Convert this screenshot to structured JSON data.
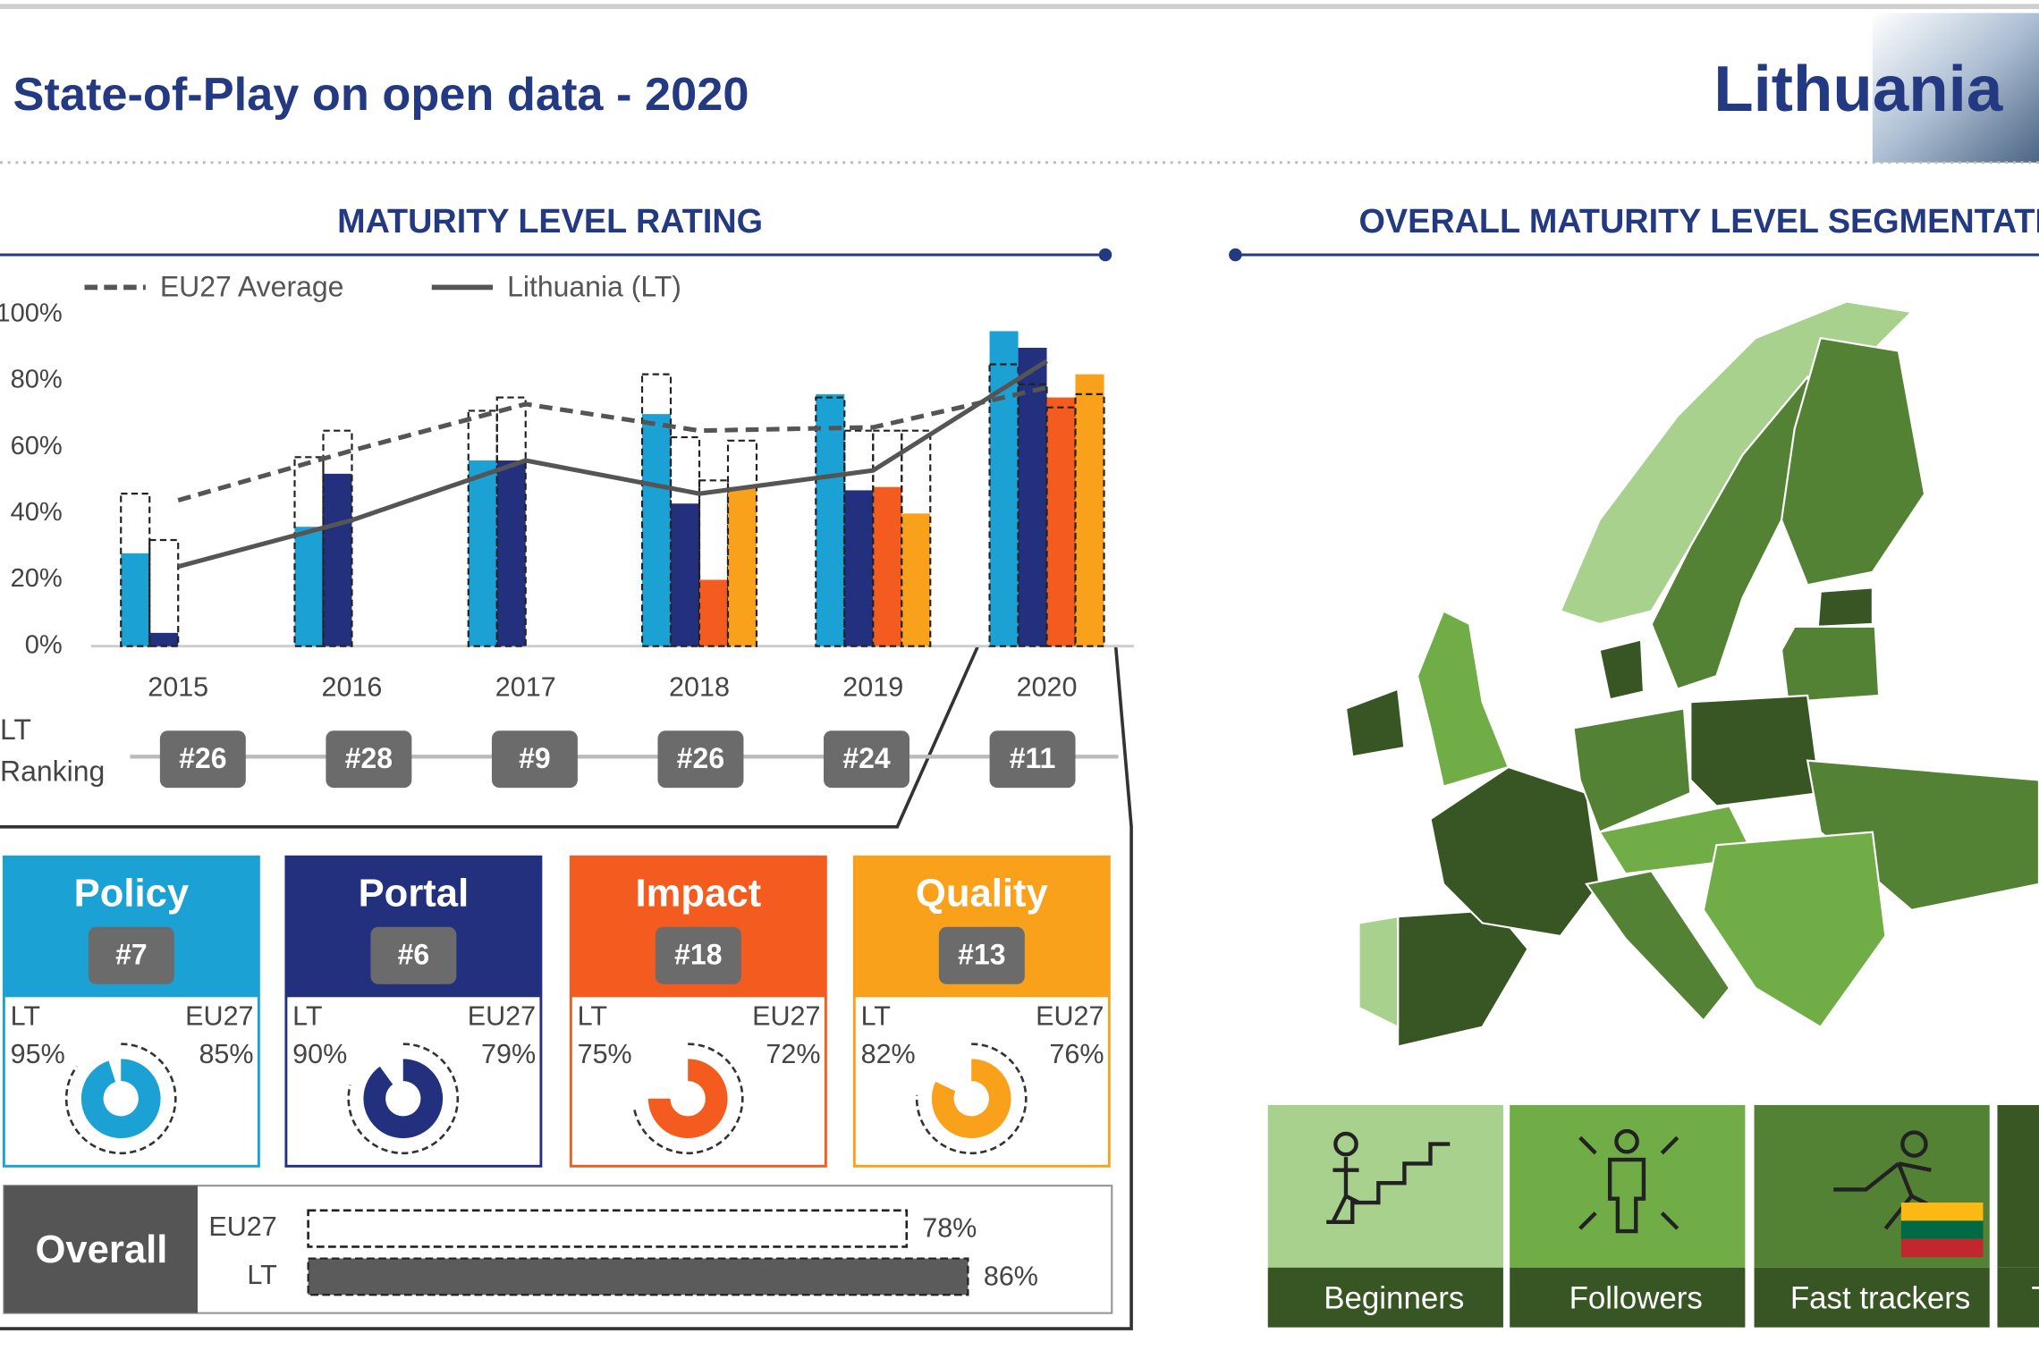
{
  "header": {
    "title": "State-of-Play on open data - 2020",
    "country": "Lithuania"
  },
  "chart_data": [
    {
      "type": "bar",
      "title": "MATURITY LEVEL RATING",
      "categories": [
        "2015",
        "2016",
        "2017",
        "2018",
        "2019",
        "2020"
      ],
      "series": [
        {
          "name": "Policy",
          "color": "#1ba1d4",
          "values": [
            28,
            36,
            56,
            70,
            76,
            95
          ],
          "eu27_values": [
            46,
            57,
            71,
            82,
            75,
            85
          ]
        },
        {
          "name": "Portal",
          "color": "#23307d",
          "values": [
            4,
            52,
            56,
            43,
            47,
            90
          ],
          "eu27_values": [
            32,
            65,
            75,
            63,
            65,
            79
          ]
        },
        {
          "name": "Impact",
          "color": "#f45b1f",
          "values": [
            null,
            null,
            null,
            20,
            48,
            75
          ],
          "eu27_values": [
            null,
            null,
            null,
            50,
            65,
            72
          ]
        },
        {
          "name": "Quality",
          "color": "#f9a11b",
          "values": [
            null,
            null,
            null,
            48,
            40,
            82
          ],
          "eu27_values": [
            null,
            null,
            null,
            62,
            65,
            76
          ]
        }
      ],
      "lines": [
        {
          "name": "EU27 Average",
          "color": "#555555",
          "dashed": true,
          "values": [
            44,
            59,
            73,
            65,
            66,
            78
          ]
        },
        {
          "name": "Lithuania (LT)",
          "color": "#555555",
          "dashed": false,
          "values": [
            24,
            38,
            56,
            46,
            53,
            86
          ]
        }
      ],
      "ylim": [
        0,
        100
      ],
      "yticks": [
        {
          "value": 0,
          "label": "0%"
        },
        {
          "value": 20,
          "label": "20%"
        },
        {
          "value": 40,
          "label": "40%"
        },
        {
          "value": 60,
          "label": "60%"
        },
        {
          "value": 80,
          "label": "80%"
        },
        {
          "value": 100,
          "label": "100%"
        }
      ],
      "ranking_label": [
        "LT",
        "Ranking"
      ],
      "rankings": [
        "#26",
        "#28",
        "#9",
        "#26",
        "#24",
        "#11"
      ]
    }
  ],
  "scorecard_labels": [
    "LT",
    "EU27"
  ],
  "scorecards": [
    {
      "rank": "#7",
      "values": [
        95,
        85
      ],
      "value_labels": [
        "95%",
        "85%"
      ]
    },
    {
      "rank": "#6",
      "values": [
        90,
        79
      ],
      "value_labels": [
        "90%",
        "79%"
      ]
    },
    {
      "rank": "#18",
      "values": [
        75,
        72
      ],
      "value_labels": [
        "75%",
        "72%"
      ]
    },
    {
      "rank": "#13",
      "values": [
        82,
        76
      ],
      "value_labels": [
        "82%",
        "76%"
      ]
    }
  ],
  "overall": {
    "title": "Overall",
    "categories": [
      "EU27",
      "LT"
    ],
    "values": [
      78,
      86
    ],
    "value_labels": [
      "78%",
      "86%"
    ],
    "xlim": [
      0,
      100
    ]
  },
  "map": {
    "title": "OVERALL MATURITY LEVEL SEGMENTATION",
    "segments": [
      {
        "name": "Beginners",
        "color": "#a9d18e"
      },
      {
        "name": "Followers",
        "color": "#70ad47"
      },
      {
        "name": "Fast trackers",
        "color": "#548235"
      },
      {
        "name": "Trend-setters",
        "color": "#385723"
      }
    ]
  }
}
